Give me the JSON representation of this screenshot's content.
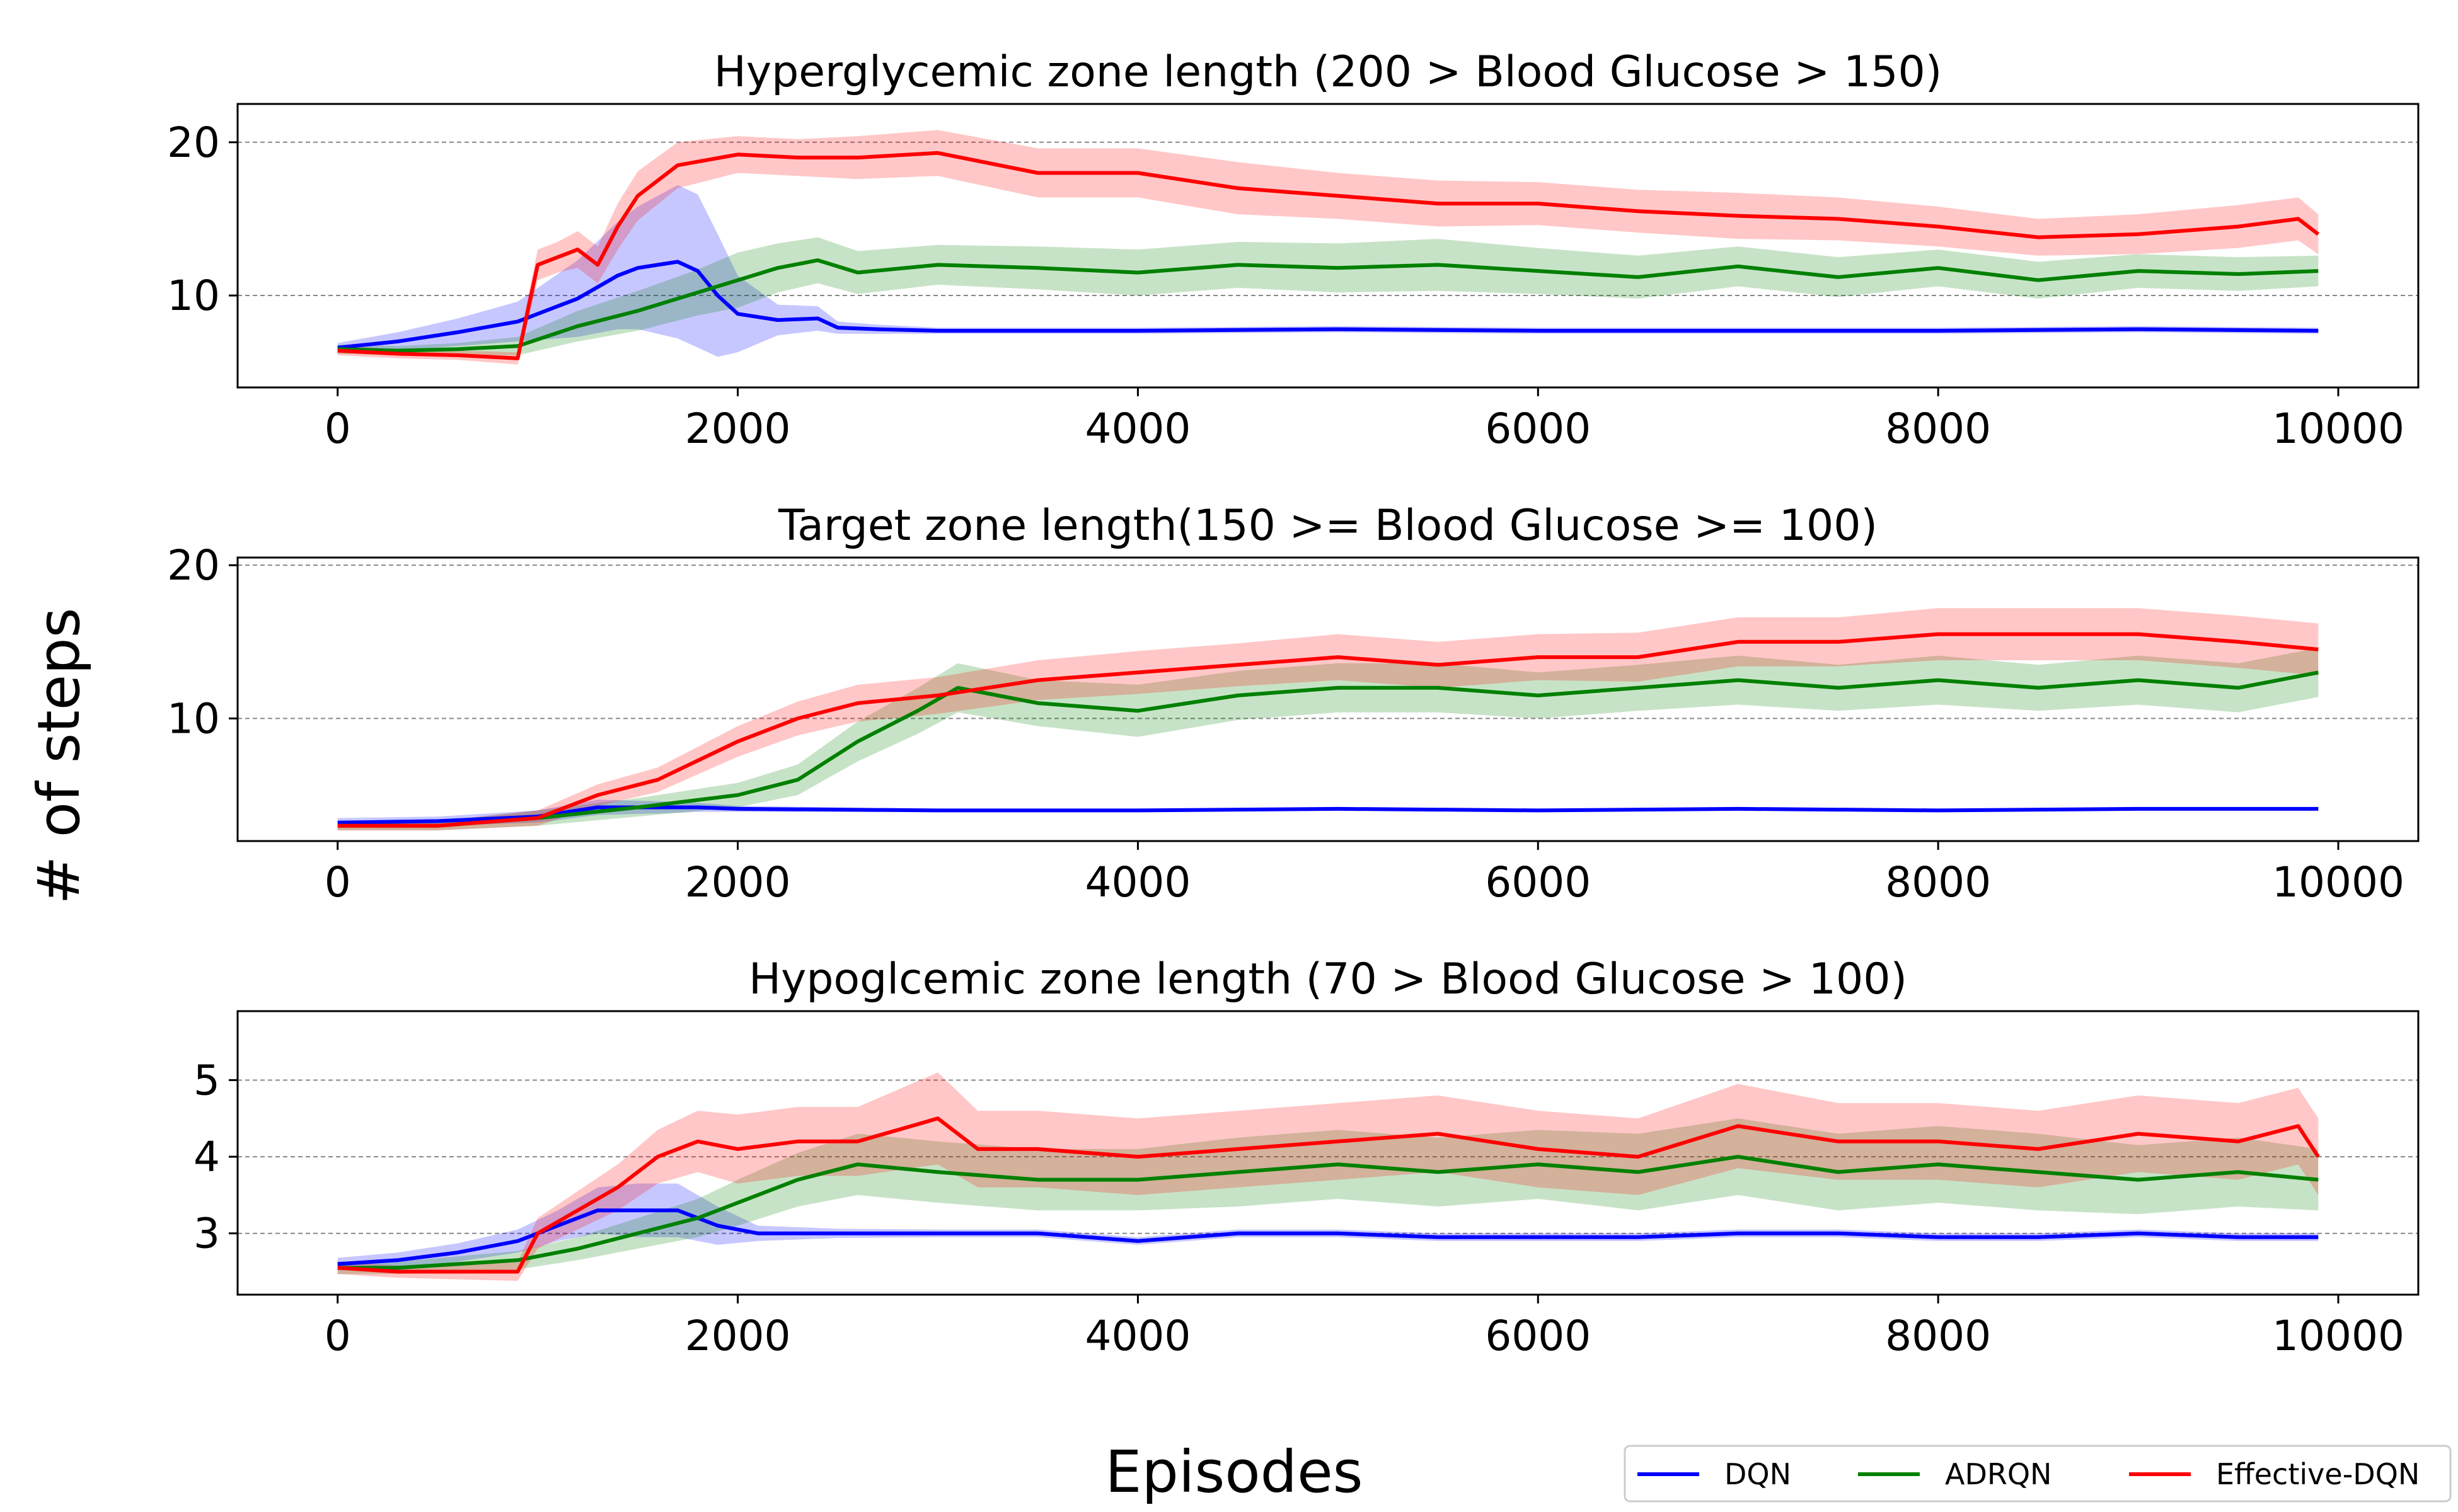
{
  "figure": {
    "xlabel": "Episodes",
    "ylabel": "# of steps"
  },
  "colors": {
    "DQN": "#0000ff",
    "ADRQN": "#008000",
    "Effective-DQN": "#ff0000"
  },
  "legend": {
    "placement": "bottom-right",
    "entries": [
      "DQN",
      "ADRQN",
      "Effective-DQN"
    ]
  },
  "chart_data": [
    {
      "type": "line",
      "title": "Hyperglycemic zone length (200 > Blood Glucose > 150)",
      "xlim": [
        -500,
        10400
      ],
      "ylim": [
        4,
        22.5
      ],
      "xticks": [
        0,
        2000,
        4000,
        6000,
        8000,
        10000
      ],
      "xtick_labels": [
        "0",
        "2000",
        "4000",
        "6000",
        "8000",
        "10000"
      ],
      "yticks": [
        10,
        20
      ],
      "ytick_labels": [
        "10",
        "20"
      ],
      "grid": "y-dashed",
      "series": [
        {
          "name": "DQN",
          "x": [
            0,
            300,
            600,
            900,
            1200,
            1400,
            1500,
            1600,
            1700,
            1800,
            1900,
            2000,
            2200,
            2400,
            2500,
            2700,
            3000,
            4000,
            5000,
            6000,
            7000,
            8000,
            9000,
            9900
          ],
          "y": [
            6.6,
            7.0,
            7.6,
            8.3,
            9.8,
            11.3,
            11.8,
            12.0,
            12.2,
            11.6,
            10.0,
            8.8,
            8.4,
            8.5,
            7.9,
            7.8,
            7.7,
            7.7,
            7.8,
            7.7,
            7.7,
            7.7,
            7.8,
            7.7
          ],
          "band": [
            0.3,
            0.6,
            0.9,
            1.3,
            2.5,
            3.5,
            4.0,
            4.5,
            5.0,
            5.0,
            4.0,
            2.5,
            1.0,
            0.8,
            0.4,
            0.3,
            0.2,
            0.2,
            0.2,
            0.2,
            0.2,
            0.2,
            0.2,
            0.2
          ]
        },
        {
          "name": "ADRQN",
          "x": [
            0,
            300,
            600,
            900,
            1200,
            1500,
            1800,
            2000,
            2200,
            2400,
            2600,
            3000,
            3500,
            4000,
            4500,
            5000,
            5500,
            6000,
            6500,
            7000,
            7500,
            8000,
            8500,
            9000,
            9500,
            9900
          ],
          "y": [
            6.5,
            6.4,
            6.5,
            6.7,
            8.0,
            9.0,
            10.2,
            11.0,
            11.8,
            12.3,
            11.5,
            12.0,
            11.8,
            11.5,
            12.0,
            11.8,
            12.0,
            11.6,
            11.2,
            11.9,
            11.2,
            11.8,
            11.0,
            11.6,
            11.4,
            11.6
          ],
          "band": [
            0.3,
            0.3,
            0.4,
            0.6,
            1.0,
            1.3,
            1.5,
            1.8,
            1.6,
            1.5,
            1.4,
            1.3,
            1.4,
            1.5,
            1.5,
            1.6,
            1.7,
            1.5,
            1.4,
            1.3,
            1.3,
            1.2,
            1.2,
            1.1,
            1.1,
            1.0
          ]
        },
        {
          "name": "Effective-DQN",
          "x": [
            0,
            300,
            600,
            900,
            950,
            1000,
            1100,
            1200,
            1300,
            1400,
            1500,
            1700,
            2000,
            2300,
            2600,
            3000,
            3500,
            4000,
            4500,
            5000,
            5500,
            6000,
            6500,
            7000,
            7500,
            8000,
            8500,
            9000,
            9500,
            9800,
            9900
          ],
          "y": [
            6.4,
            6.2,
            6.1,
            5.9,
            9.0,
            12.0,
            12.5,
            13.0,
            12.0,
            14.5,
            16.5,
            18.5,
            19.2,
            19.0,
            19.0,
            19.3,
            18.0,
            18.0,
            17.0,
            16.5,
            16.0,
            16.0,
            15.5,
            15.2,
            15.0,
            14.5,
            13.8,
            14.0,
            14.5,
            15.0,
            14.0
          ],
          "band": [
            0.3,
            0.3,
            0.3,
            0.4,
            0.8,
            1.0,
            1.0,
            1.2,
            1.2,
            1.5,
            1.6,
            1.5,
            1.2,
            1.2,
            1.4,
            1.5,
            1.6,
            1.6,
            1.7,
            1.5,
            1.5,
            1.4,
            1.4,
            1.5,
            1.4,
            1.3,
            1.2,
            1.3,
            1.4,
            1.4,
            1.3
          ]
        }
      ]
    },
    {
      "type": "line",
      "title": "Target zone length(150 >= Blood Glucose >= 100)",
      "xlim": [
        -500,
        10400
      ],
      "ylim": [
        2,
        20.5
      ],
      "xticks": [
        0,
        2000,
        4000,
        6000,
        8000,
        10000
      ],
      "xtick_labels": [
        "0",
        "2000",
        "4000",
        "6000",
        "8000",
        "10000"
      ],
      "yticks": [
        10,
        20
      ],
      "ytick_labels": [
        "10",
        "20"
      ],
      "grid": "y-dashed",
      "series": [
        {
          "name": "DQN",
          "x": [
            0,
            500,
            1000,
            1300,
            1600,
            1800,
            2000,
            3000,
            4000,
            5000,
            6000,
            7000,
            8000,
            9000,
            9900
          ],
          "y": [
            3.2,
            3.3,
            3.6,
            4.2,
            4.2,
            4.2,
            4.1,
            4.0,
            4.0,
            4.1,
            4.0,
            4.1,
            4.0,
            4.1,
            4.1
          ],
          "band": [
            0.3,
            0.3,
            0.4,
            0.5,
            0.4,
            0.3,
            0.2,
            0.1,
            0.1,
            0.1,
            0.1,
            0.1,
            0.1,
            0.1,
            0.1
          ]
        },
        {
          "name": "ADRQN",
          "x": [
            0,
            500,
            1000,
            1500,
            2000,
            2300,
            2600,
            2900,
            3100,
            3500,
            4000,
            4500,
            5000,
            5500,
            6000,
            6500,
            7000,
            7500,
            8000,
            8500,
            9000,
            9500,
            9900
          ],
          "y": [
            3.0,
            3.0,
            3.5,
            4.2,
            5.0,
            6.0,
            8.5,
            10.5,
            12.0,
            11.0,
            10.5,
            11.5,
            12.0,
            12.0,
            11.5,
            12.0,
            12.5,
            12.0,
            12.5,
            12.0,
            12.5,
            12.0,
            13.0
          ],
          "band": [
            0.3,
            0.3,
            0.5,
            0.6,
            0.8,
            1.0,
            1.3,
            1.5,
            1.6,
            1.5,
            1.7,
            1.6,
            1.6,
            1.6,
            1.5,
            1.5,
            1.6,
            1.5,
            1.6,
            1.5,
            1.6,
            1.6,
            1.6
          ]
        },
        {
          "name": "Effective-DQN",
          "x": [
            0,
            500,
            1000,
            1300,
            1600,
            2000,
            2300,
            2600,
            3000,
            3500,
            4000,
            4500,
            5000,
            5500,
            6000,
            6500,
            7000,
            7500,
            8000,
            8500,
            9000,
            9500,
            9900
          ],
          "y": [
            3.0,
            3.0,
            3.5,
            5.0,
            6.0,
            8.5,
            10.0,
            11.0,
            11.5,
            12.5,
            13.0,
            13.5,
            14.0,
            13.5,
            14.0,
            14.0,
            15.0,
            15.0,
            15.5,
            15.5,
            15.5,
            15.0,
            14.5
          ],
          "band": [
            0.3,
            0.3,
            0.5,
            0.7,
            0.8,
            1.0,
            1.1,
            1.2,
            1.2,
            1.3,
            1.4,
            1.4,
            1.5,
            1.5,
            1.5,
            1.6,
            1.6,
            1.6,
            1.7,
            1.7,
            1.7,
            1.7,
            1.7
          ]
        }
      ]
    },
    {
      "type": "line",
      "title": "Hypoglcemic zone length (70 > Blood Glucose > 100)",
      "xlim": [
        -500,
        10400
      ],
      "ylim": [
        2.2,
        5.9
      ],
      "xticks": [
        0,
        2000,
        4000,
        6000,
        8000,
        10000
      ],
      "xtick_labels": [
        "0",
        "2000",
        "4000",
        "6000",
        "8000",
        "10000"
      ],
      "yticks": [
        3,
        4,
        5
      ],
      "ytick_labels": [
        "3",
        "4",
        "5"
      ],
      "grid": "y-dashed",
      "series": [
        {
          "name": "DQN",
          "x": [
            0,
            300,
            600,
            900,
            1100,
            1300,
            1500,
            1700,
            1900,
            2100,
            2500,
            3000,
            3500,
            4000,
            4500,
            5000,
            5500,
            6000,
            6500,
            7000,
            7500,
            8000,
            8500,
            9000,
            9500,
            9900
          ],
          "y": [
            2.6,
            2.65,
            2.75,
            2.9,
            3.1,
            3.3,
            3.3,
            3.3,
            3.1,
            3.0,
            3.0,
            3.0,
            3.0,
            2.9,
            3.0,
            3.0,
            2.95,
            2.95,
            2.95,
            3.0,
            3.0,
            2.95,
            2.95,
            3.0,
            2.95,
            2.95
          ],
          "band": [
            0.08,
            0.1,
            0.12,
            0.15,
            0.2,
            0.3,
            0.35,
            0.35,
            0.25,
            0.1,
            0.06,
            0.05,
            0.05,
            0.05,
            0.05,
            0.05,
            0.05,
            0.05,
            0.05,
            0.05,
            0.05,
            0.05,
            0.05,
            0.05,
            0.05,
            0.05
          ]
        },
        {
          "name": "ADRQN",
          "x": [
            0,
            300,
            600,
            900,
            1200,
            1500,
            1800,
            2000,
            2300,
            2600,
            3000,
            3500,
            4000,
            4500,
            5000,
            5500,
            6000,
            6500,
            7000,
            7500,
            8000,
            8500,
            9000,
            9500,
            9900
          ],
          "y": [
            2.55,
            2.55,
            2.6,
            2.65,
            2.8,
            3.0,
            3.2,
            3.4,
            3.7,
            3.9,
            3.8,
            3.7,
            3.7,
            3.8,
            3.9,
            3.8,
            3.9,
            3.8,
            4.0,
            3.8,
            3.9,
            3.8,
            3.7,
            3.8,
            3.7
          ],
          "band": [
            0.08,
            0.08,
            0.1,
            0.12,
            0.15,
            0.2,
            0.25,
            0.3,
            0.35,
            0.4,
            0.4,
            0.4,
            0.4,
            0.45,
            0.45,
            0.45,
            0.45,
            0.5,
            0.5,
            0.5,
            0.5,
            0.5,
            0.45,
            0.45,
            0.4
          ]
        },
        {
          "name": "Effective-DQN",
          "x": [
            0,
            300,
            600,
            900,
            1000,
            1200,
            1400,
            1600,
            1800,
            2000,
            2300,
            2600,
            3000,
            3200,
            3500,
            4000,
            4500,
            5000,
            5500,
            6000,
            6500,
            7000,
            7500,
            8000,
            8500,
            9000,
            9500,
            9800,
            9900
          ],
          "y": [
            2.55,
            2.5,
            2.5,
            2.5,
            3.0,
            3.3,
            3.6,
            4.0,
            4.2,
            4.1,
            4.2,
            4.2,
            4.5,
            4.1,
            4.1,
            4.0,
            4.1,
            4.2,
            4.3,
            4.1,
            4.0,
            4.4,
            4.2,
            4.2,
            4.1,
            4.3,
            4.2,
            4.4,
            4.0
          ],
          "band": [
            0.08,
            0.08,
            0.1,
            0.12,
            0.2,
            0.25,
            0.3,
            0.35,
            0.4,
            0.45,
            0.45,
            0.45,
            0.6,
            0.5,
            0.5,
            0.5,
            0.5,
            0.5,
            0.5,
            0.5,
            0.5,
            0.55,
            0.5,
            0.5,
            0.5,
            0.5,
            0.5,
            0.5,
            0.5
          ]
        }
      ]
    }
  ]
}
